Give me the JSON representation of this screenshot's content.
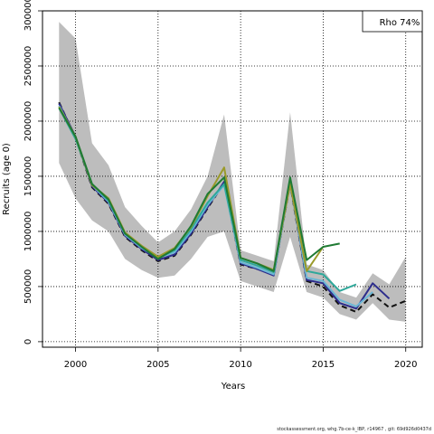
{
  "chart_data": {
    "type": "line",
    "title": "",
    "xlabel": "Years",
    "ylabel": "Recruits (age 0)",
    "xlim": [
      1998,
      2021
    ],
    "ylim": [
      -50000,
      3000000
    ],
    "xticks": [
      2000,
      2005,
      2010,
      2015,
      2020
    ],
    "yticks": [
      0,
      500000,
      1000000,
      1500000,
      2000000,
      2500000,
      3000000
    ],
    "grid": true,
    "legend": {
      "text": "Rho 74%",
      "position": "top-right"
    },
    "band": {
      "color": "#bdbdbd",
      "x": [
        1999,
        2000,
        2001,
        2002,
        2003,
        2004,
        2005,
        2006,
        2007,
        2008,
        2009,
        2010,
        2011,
        2012,
        2013,
        2014,
        2015,
        2016,
        2017,
        2018,
        2019,
        2020
      ],
      "lower": [
        1620000,
        1300000,
        1100000,
        1000000,
        750000,
        650000,
        580000,
        600000,
        750000,
        950000,
        1000000,
        550000,
        500000,
        450000,
        950000,
        450000,
        400000,
        250000,
        200000,
        350000,
        200000,
        180000
      ],
      "upper": [
        2900000,
        2750000,
        1800000,
        1600000,
        1220000,
        1050000,
        900000,
        1000000,
        1200000,
        1500000,
        2060000,
        830000,
        780000,
        730000,
        2080000,
        700000,
        650000,
        450000,
        400000,
        620000,
        520000,
        770000
      ]
    },
    "series": [
      {
        "color": "#111111",
        "dash": true,
        "x": [
          1999,
          2000,
          2001,
          2002,
          2003,
          2004,
          2005,
          2006,
          2007,
          2008,
          2009,
          2010,
          2011,
          2012,
          2013,
          2014,
          2015,
          2016,
          2017,
          2018,
          2019,
          2020
        ],
        "values": [
          2170000,
          1850000,
          1400000,
          1250000,
          950000,
          830000,
          730000,
          780000,
          970000,
          1210000,
          1440000,
          700000,
          660000,
          610000,
          1430000,
          550000,
          500000,
          330000,
          270000,
          430000,
          310000,
          370000
        ]
      },
      {
        "color": "#2d2d8c",
        "x": [
          1999,
          2000,
          2001,
          2002,
          2003,
          2004,
          2005,
          2006,
          2007,
          2008,
          2009,
          2010,
          2011,
          2012,
          2013,
          2014,
          2015,
          2016,
          2017,
          2018,
          2019
        ],
        "values": [
          2160000,
          1860000,
          1410000,
          1260000,
          960000,
          840000,
          740000,
          790000,
          980000,
          1220000,
          1450000,
          710000,
          660000,
          600000,
          1450000,
          560000,
          530000,
          350000,
          300000,
          530000,
          390000
        ]
      },
      {
        "color": "#6ab7d6",
        "x": [
          1999,
          2000,
          2001,
          2002,
          2003,
          2004,
          2005,
          2006,
          2007,
          2008,
          2009,
          2010,
          2011,
          2012,
          2013,
          2014,
          2015,
          2016,
          2017,
          2018
        ],
        "values": [
          2140000,
          1850000,
          1420000,
          1270000,
          970000,
          850000,
          760000,
          810000,
          1000000,
          1240000,
          1420000,
          720000,
          670000,
          610000,
          1440000,
          580000,
          550000,
          380000,
          320000,
          450000
        ]
      },
      {
        "color": "#2ea89a",
        "x": [
          1999,
          2000,
          2001,
          2002,
          2003,
          2004,
          2005,
          2006,
          2007,
          2008,
          2009,
          2010,
          2011,
          2012,
          2013,
          2014,
          2015,
          2016,
          2017
        ],
        "values": [
          2120000,
          1840000,
          1430000,
          1280000,
          980000,
          860000,
          760000,
          830000,
          1020000,
          1260000,
          1430000,
          740000,
          690000,
          630000,
          1460000,
          640000,
          610000,
          460000,
          520000
        ]
      },
      {
        "color": "#9a9a2a",
        "x": [
          1999,
          2000,
          2001,
          2002,
          2003,
          2004,
          2005,
          2006,
          2007,
          2008,
          2009,
          2010,
          2011,
          2012,
          2013,
          2014,
          2015
        ],
        "values": [
          2130000,
          1860000,
          1420000,
          1300000,
          990000,
          870000,
          770000,
          850000,
          1040000,
          1320000,
          1580000,
          760000,
          710000,
          650000,
          1430000,
          640000,
          860000
        ]
      },
      {
        "color": "#1f7a33",
        "x": [
          1999,
          2000,
          2001,
          2002,
          2003,
          2004,
          2005,
          2006,
          2007,
          2008,
          2009,
          2010,
          2011,
          2012,
          2013,
          2014,
          2015,
          2016
        ],
        "values": [
          2120000,
          1860000,
          1430000,
          1290000,
          980000,
          860000,
          750000,
          840000,
          1050000,
          1340000,
          1490000,
          760000,
          710000,
          640000,
          1490000,
          740000,
          860000,
          890000
        ]
      }
    ]
  },
  "footer": "stockassessment.org, whg.7b-ce-k_IBP, r14967 , git: 69d926d0437d"
}
